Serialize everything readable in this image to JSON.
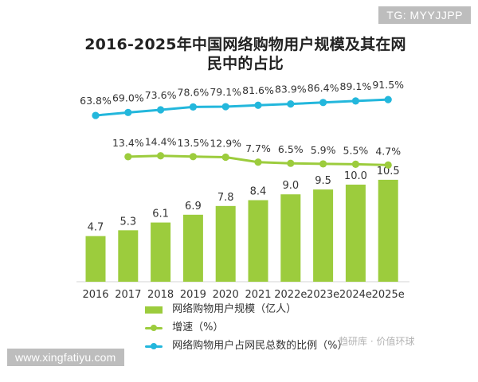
{
  "badge": "TG: MYYJJPP",
  "site_label": "www.xingfatiyu.com",
  "watermark": "趋研库 · 价值环球",
  "colors": {
    "bar": "#9ccc3d",
    "growth": "#9ccc3d",
    "share": "#23b7dc",
    "text": "#333333",
    "badge_bg": "#bdbdbd"
  },
  "chart_data": {
    "type": "bar",
    "title_lines": [
      "2016-2025年中国网络购物用户规模及其在网",
      "民中的占比"
    ],
    "categories": [
      "2016",
      "2017",
      "2018",
      "2019",
      "2020",
      "2021",
      "2022e",
      "2023e",
      "2024e",
      "2025e"
    ],
    "series": [
      {
        "name": "网络购物用户规模（亿人）",
        "type": "bar",
        "values": [
          4.7,
          5.3,
          6.1,
          6.9,
          7.8,
          8.4,
          9.0,
          9.5,
          10.0,
          10.5
        ],
        "labels": [
          "4.7",
          "5.3",
          "6.1",
          "6.9",
          "7.8",
          "8.4",
          "9.0",
          "9.5",
          "10.0",
          "10.5"
        ],
        "color": "#9ccc3d"
      },
      {
        "name": "增速（%）",
        "type": "line",
        "values": [
          null,
          13.4,
          14.4,
          13.5,
          12.9,
          7.7,
          6.5,
          5.9,
          5.5,
          4.7
        ],
        "labels": [
          "",
          "13.4%",
          "14.4%",
          "13.5%",
          "12.9%",
          "7.7%",
          "6.5%",
          "5.9%",
          "5.5%",
          "4.7%"
        ],
        "color": "#9ccc3d"
      },
      {
        "name": "网络购物用户占网民总数的比例（%）",
        "type": "line",
        "values": [
          63.8,
          69.0,
          73.6,
          78.6,
          79.1,
          81.6,
          83.9,
          86.4,
          89.1,
          91.5
        ],
        "labels": [
          "63.8%",
          "69.0%",
          "73.6%",
          "78.6%",
          "79.1%",
          "81.6%",
          "83.9%",
          "86.4%",
          "89.1%",
          "91.5%"
        ],
        "color": "#23b7dc"
      }
    ],
    "legend": [
      {
        "label": "网络购物用户规模（亿人）",
        "kind": "bar",
        "color": "#9ccc3d"
      },
      {
        "label": "增速（%）",
        "kind": "line",
        "color": "#9ccc3d"
      },
      {
        "label": "网络购物用户占网民总数的比例（%）",
        "kind": "line",
        "color": "#23b7dc"
      }
    ],
    "legend_position": "bottom-center",
    "grid": false
  }
}
